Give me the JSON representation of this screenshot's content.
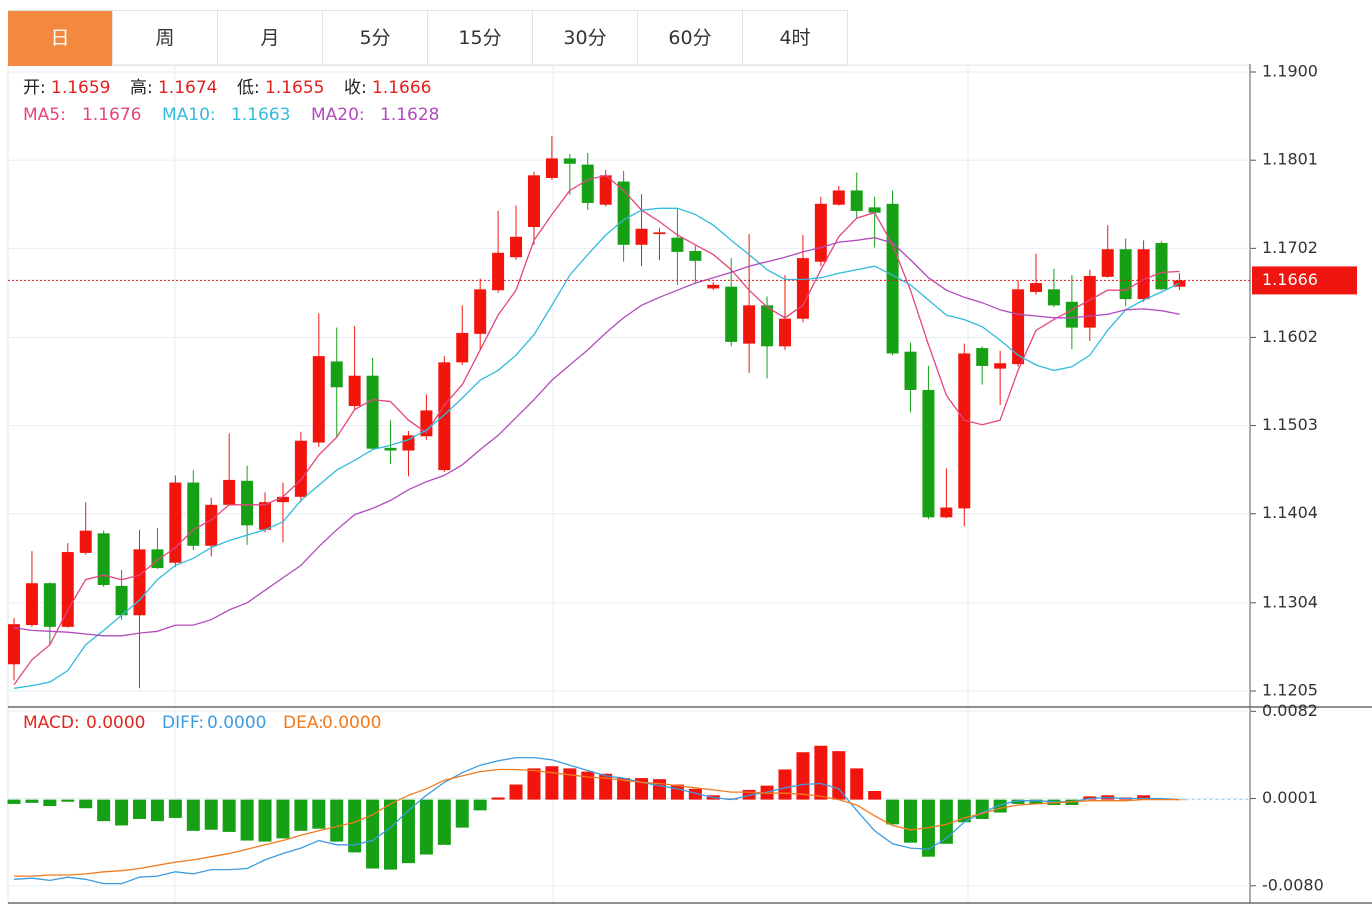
{
  "tabs": [
    "日",
    "周",
    "月",
    "5分",
    "15分",
    "30分",
    "60分",
    "4时"
  ],
  "active_tab": 0,
  "chart_data": [
    {
      "type": "candlestick",
      "ohlc_labels": [
        "开:",
        "高:",
        "低:",
        "收:"
      ],
      "up_color": "#f2150d",
      "down_color": "#16a016",
      "open": [
        1.1235,
        1.1279,
        1.1326,
        1.1277,
        1.136,
        1.1382,
        1.1323,
        1.129,
        1.1364,
        1.1349,
        1.1439,
        1.1368,
        1.1414,
        1.1441,
        1.1386,
        1.1417,
        1.1423,
        1.1484,
        1.1575,
        1.1525,
        1.1559,
        1.1478,
        1.1475,
        1.1491,
        1.1453,
        1.1574,
        1.1606,
        1.1655,
        1.1692,
        1.1726,
        1.1781,
        1.1803,
        1.1796,
        1.1751,
        1.1777,
        1.1706,
        1.1718,
        1.1714,
        1.1699,
        1.1657,
        1.1659,
        1.1595,
        1.1638,
        1.1592,
        1.1623,
        1.1687,
        1.1751,
        1.1767,
        1.1748,
        1.1752,
        1.1586,
        1.1543,
        1.14,
        1.141,
        1.159,
        1.1567,
        1.1572,
        1.1653,
        1.1656,
        1.1642,
        1.1613,
        1.167,
        1.1701,
        1.1645,
        1.1708,
        1.1659
      ],
      "high": [
        1.1287,
        1.1362,
        1.1327,
        1.1371,
        1.1417,
        1.1385,
        1.1341,
        1.1386,
        1.1388,
        1.1447,
        1.1453,
        1.1422,
        1.1494,
        1.1458,
        1.1428,
        1.1439,
        1.1496,
        1.1629,
        1.1613,
        1.1615,
        1.1579,
        1.1509,
        1.1497,
        1.1538,
        1.1581,
        1.1638,
        1.1668,
        1.1744,
        1.175,
        1.1788,
        1.1828,
        1.1808,
        1.1809,
        1.179,
        1.1789,
        1.1763,
        1.1725,
        1.1747,
        1.1705,
        1.1664,
        1.1691,
        1.1718,
        1.1648,
        1.1672,
        1.1717,
        1.176,
        1.1772,
        1.1787,
        1.176,
        1.1767,
        1.1596,
        1.157,
        1.1455,
        1.1595,
        1.1592,
        1.1587,
        1.1666,
        1.1696,
        1.1679,
        1.1672,
        1.1678,
        1.1728,
        1.1713,
        1.1711,
        1.171,
        1.1674
      ],
      "low": [
        1.1217,
        1.1277,
        1.1257,
        1.1276,
        1.1358,
        1.1322,
        1.1285,
        1.1208,
        1.1342,
        1.1344,
        1.1363,
        1.1356,
        1.1413,
        1.1369,
        1.1383,
        1.1372,
        1.1417,
        1.1479,
        1.1489,
        1.152,
        1.1476,
        1.146,
        1.1446,
        1.1487,
        1.1451,
        1.1571,
        1.1588,
        1.1652,
        1.1689,
        1.1706,
        1.1779,
        1.1762,
        1.1745,
        1.1749,
        1.1687,
        1.1682,
        1.1689,
        1.1661,
        1.1663,
        1.1655,
        1.1592,
        1.1562,
        1.1556,
        1.1588,
        1.1619,
        1.1682,
        1.175,
        1.1736,
        1.1703,
        1.1582,
        1.1518,
        1.1398,
        1.1399,
        1.139,
        1.1549,
        1.1526,
        1.1569,
        1.165,
        1.1636,
        1.1589,
        1.1598,
        1.1669,
        1.1637,
        1.1642,
        1.1655,
        1.1655
      ],
      "close": [
        1.128,
        1.1326,
        1.1277,
        1.1361,
        1.1385,
        1.1324,
        1.129,
        1.1364,
        1.1343,
        1.1439,
        1.1368,
        1.1414,
        1.1442,
        1.1391,
        1.1417,
        1.1423,
        1.1486,
        1.1581,
        1.1546,
        1.1559,
        1.1477,
        1.1475,
        1.1492,
        1.152,
        1.1574,
        1.1607,
        1.1656,
        1.1697,
        1.1715,
        1.1784,
        1.1803,
        1.1797,
        1.1753,
        1.1784,
        1.1706,
        1.1724,
        1.172,
        1.1698,
        1.1688,
        1.1661,
        1.1597,
        1.1638,
        1.1592,
        1.1623,
        1.1691,
        1.1752,
        1.1767,
        1.1744,
        1.1742,
        1.1584,
        1.1543,
        1.14,
        1.1411,
        1.1584,
        1.157,
        1.1573,
        1.1656,
        1.1663,
        1.1638,
        1.1613,
        1.1671,
        1.1701,
        1.1645,
        1.1701,
        1.1656,
        1.1666
      ],
      "series": [
        {
          "name": "MA5:",
          "color": "#e4457e",
          "values": [
            1.1212,
            1.124,
            1.1257,
            1.1296,
            1.133,
            1.1335,
            1.133,
            1.1335,
            1.1352,
            1.1366,
            1.1386,
            1.1397,
            1.1414,
            1.1414,
            1.1414,
            1.1423,
            1.1442,
            1.147,
            1.149,
            1.1521,
            1.1532,
            1.153,
            1.1509,
            1.1495,
            1.1526,
            1.1549,
            1.1588,
            1.1627,
            1.1655,
            1.1711,
            1.174,
            1.1767,
            1.1779,
            1.1784,
            1.1767,
            1.1745,
            1.1732,
            1.1717,
            1.1706,
            1.1695,
            1.1678,
            1.1655,
            1.1636,
            1.1624,
            1.1638,
            1.1678,
            1.1715,
            1.1736,
            1.1742,
            1.1706,
            1.1655,
            1.1594,
            1.1537,
            1.1509,
            1.1504,
            1.1509,
            1.1565,
            1.161,
            1.1622,
            1.1633,
            1.1644,
            1.1655,
            1.1655,
            1.1667,
            1.1675,
            1.1676
          ]
        },
        {
          "name": "MA10:",
          "color": "#33bbdd",
          "values": [
            1.1208,
            1.1211,
            1.1215,
            1.1228,
            1.1257,
            1.1273,
            1.129,
            1.1307,
            1.133,
            1.1346,
            1.1354,
            1.1366,
            1.1374,
            1.138,
            1.1386,
            1.1395,
            1.1419,
            1.1436,
            1.1453,
            1.1464,
            1.1476,
            1.1481,
            1.1487,
            1.1498,
            1.1515,
            1.1534,
            1.1554,
            1.1565,
            1.1582,
            1.1605,
            1.1638,
            1.1672,
            1.1695,
            1.1717,
            1.1734,
            1.1745,
            1.1747,
            1.1747,
            1.174,
            1.1728,
            1.1711,
            1.1695,
            1.1678,
            1.1667,
            1.1667,
            1.1669,
            1.1674,
            1.1678,
            1.1682,
            1.1672,
            1.1661,
            1.1644,
            1.1627,
            1.1622,
            1.1614,
            1.1599,
            1.1582,
            1.1571,
            1.1565,
            1.1569,
            1.1582,
            1.161,
            1.1633,
            1.1644,
            1.1653,
            1.1663
          ]
        },
        {
          "name": "MA20:",
          "color": "#b24cbc",
          "values": [
            1.1276,
            1.1273,
            1.1272,
            1.1271,
            1.1269,
            1.1267,
            1.1267,
            1.127,
            1.1272,
            1.1279,
            1.1279,
            1.1285,
            1.1296,
            1.1304,
            1.1318,
            1.1332,
            1.1346,
            1.1367,
            1.1386,
            1.1403,
            1.141,
            1.1419,
            1.1431,
            1.144,
            1.1447,
            1.1459,
            1.1476,
            1.1492,
            1.1512,
            1.1532,
            1.1554,
            1.1571,
            1.1588,
            1.1607,
            1.1624,
            1.1638,
            1.1647,
            1.1655,
            1.1663,
            1.1669,
            1.1675,
            1.1682,
            1.1687,
            1.1692,
            1.1698,
            1.1703,
            1.1709,
            1.1711,
            1.1714,
            1.1708,
            1.1689,
            1.1669,
            1.1655,
            1.1647,
            1.1641,
            1.1633,
            1.1628,
            1.1626,
            1.1624,
            1.1624,
            1.1626,
            1.1628,
            1.1633,
            1.1634,
            1.1632,
            1.1628
          ]
        }
      ],
      "ylim": [
        1.1187,
        1.1909
      ],
      "yticks": [
        {
          "value": 1.19,
          "label": "1.1900"
        },
        1.1801,
        1.1702,
        1.1602,
        1.1503,
        1.1404,
        1.1304,
        1.1205
      ],
      "grid": true
    },
    {
      "type": "macd",
      "legend": [
        {
          "label": "MACD:",
          "value": "0.0000",
          "color": "#e0281e"
        },
        {
          "label": "DIFF:",
          "value": "0.0000",
          "color": "#3d9be0"
        },
        {
          "label": "DEA:",
          "value": "0.0000",
          "color": "#f07a1e"
        }
      ],
      "up_color": "#f2150d",
      "down_color": "#16a016",
      "values": [
        -0.0004,
        -0.0003,
        -0.0006,
        -0.0002,
        -0.0008,
        -0.002,
        -0.0024,
        -0.0018,
        -0.002,
        -0.0017,
        -0.0029,
        -0.0028,
        -0.003,
        -0.0038,
        -0.0039,
        -0.0036,
        -0.0029,
        -0.0027,
        -0.0039,
        -0.0049,
        -0.0064,
        -0.0065,
        -0.0059,
        -0.0051,
        -0.0042,
        -0.0026,
        -0.001,
        0.0002,
        0.0014,
        0.0029,
        0.0031,
        0.0029,
        0.0026,
        0.0024,
        0.002,
        0.002,
        0.0019,
        0.0014,
        0.001,
        0.0004,
        0.0001,
        0.0009,
        0.0013,
        0.0028,
        0.0044,
        0.005,
        0.0045,
        0.0029,
        0.0008,
        -0.0023,
        -0.004,
        -0.0053,
        -0.0041,
        -0.0021,
        -0.0018,
        -0.0012,
        -0.0004,
        -0.0004,
        -0.0005,
        -0.0005,
        0.0003,
        0.0004,
        0.0002,
        0.0004,
        0.0001,
        0.0
      ],
      "series": [
        {
          "name": "DIFF",
          "color": "#3d9be0",
          "values": [
            -0.0074,
            -0.0073,
            -0.0075,
            -0.0072,
            -0.0074,
            -0.0078,
            -0.0078,
            -0.0072,
            -0.0071,
            -0.0067,
            -0.0069,
            -0.0065,
            -0.0065,
            -0.0064,
            -0.0056,
            -0.005,
            -0.0045,
            -0.0038,
            -0.0042,
            -0.0042,
            -0.0038,
            -0.0026,
            -0.001,
            0.0004,
            0.0016,
            0.0025,
            0.0032,
            0.0036,
            0.0039,
            0.0039,
            0.0037,
            0.0032,
            0.0027,
            0.0022,
            0.002,
            0.0016,
            0.0013,
            0.001,
            0.0006,
            0.0002,
            0.0,
            0.0004,
            0.0007,
            0.0011,
            0.0014,
            0.0015,
            0.001,
            -0.001,
            -0.0029,
            -0.0041,
            -0.0045,
            -0.0046,
            -0.0036,
            -0.0021,
            -0.0012,
            -0.0005,
            -0.0001,
            -0.0001,
            -0.0002,
            -0.0002,
            0.0001,
            0.0002,
            0.0001,
            0.0001,
            0.0001,
            0.0
          ]
        },
        {
          "name": "DEA",
          "color": "#f07a1e",
          "values": [
            -0.0071,
            -0.0071,
            -0.007,
            -0.007,
            -0.0069,
            -0.0067,
            -0.0066,
            -0.0064,
            -0.0061,
            -0.0058,
            -0.0056,
            -0.0053,
            -0.005,
            -0.0046,
            -0.0042,
            -0.0038,
            -0.0033,
            -0.0029,
            -0.0025,
            -0.0021,
            -0.0014,
            -0.0004,
            0.0004,
            0.001,
            0.0018,
            0.0022,
            0.0026,
            0.0028,
            0.0028,
            0.0027,
            0.0025,
            0.0023,
            0.0021,
            0.002,
            0.0018,
            0.0016,
            0.0015,
            0.0013,
            0.0011,
            0.0009,
            0.0007,
            0.0007,
            0.0006,
            0.0006,
            0.0005,
            0.0003,
            0.0,
            -0.0005,
            -0.0015,
            -0.0024,
            -0.0028,
            -0.0026,
            -0.0023,
            -0.0017,
            -0.0013,
            -0.0008,
            -0.0005,
            -0.0004,
            -0.0003,
            -0.0002,
            -0.0001,
            -0.0001,
            -0.0001,
            0.0,
            0.0,
            0.0
          ]
        }
      ],
      "ylim": [
        -0.0096,
        0.0086
      ],
      "yticks": [
        0.0082,
        0.0001,
        {
          "value": -0.008,
          "label": "-0.0080"
        }
      ],
      "grid": true
    }
  ]
}
